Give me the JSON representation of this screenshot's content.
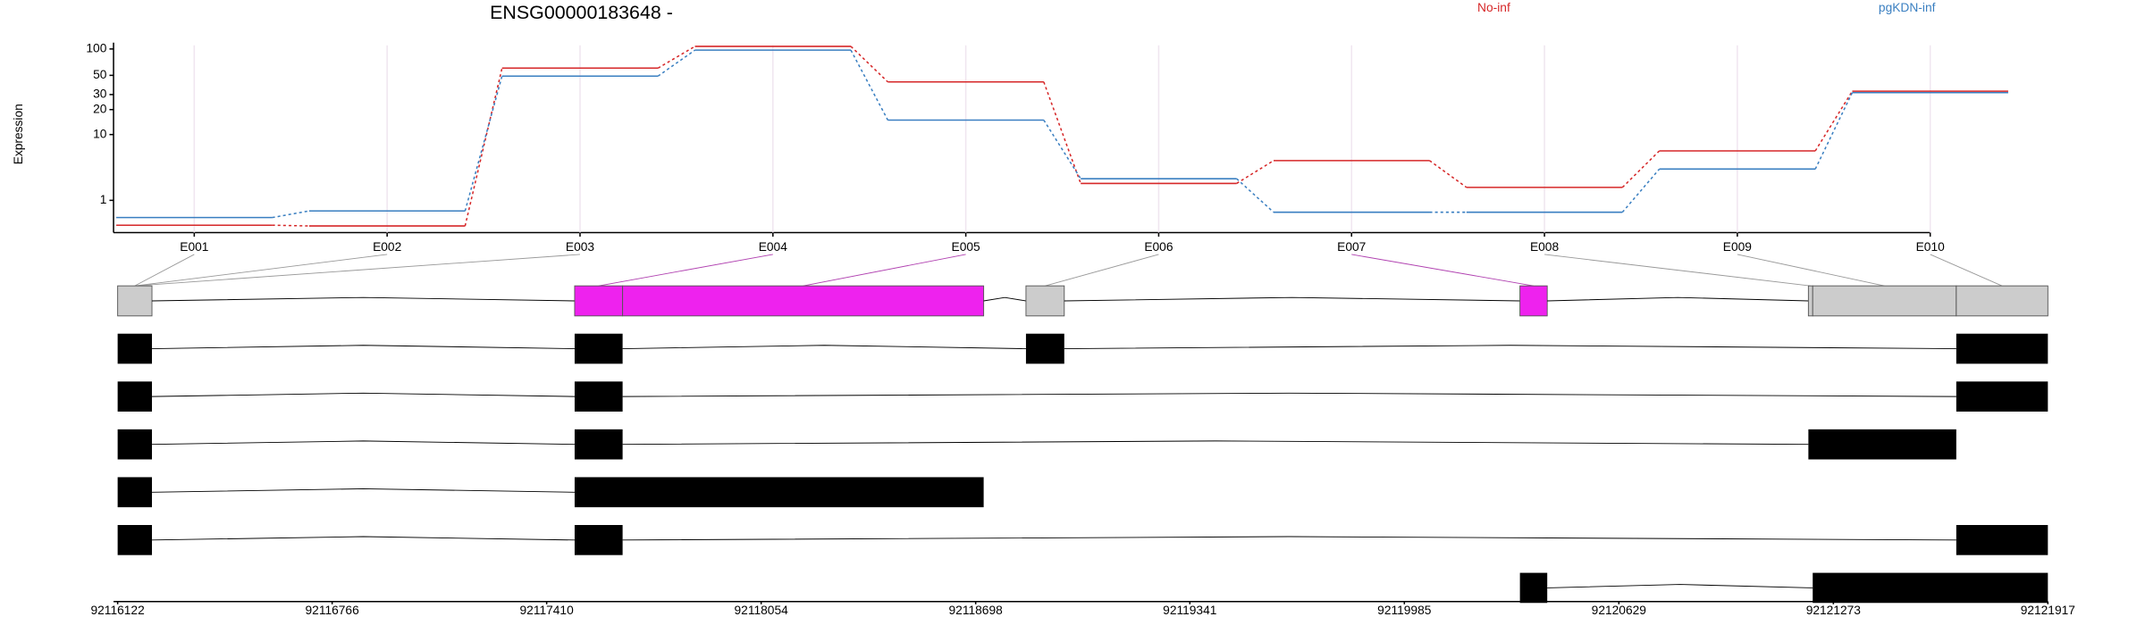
{
  "chart_data": {
    "type": "line",
    "title": "ENSG00000183648 -",
    "y_label": "Expression",
    "y_scale": "log1p",
    "grid": true,
    "categories": [
      "E001",
      "E002",
      "E003",
      "E004",
      "E005",
      "E006",
      "E007",
      "E008",
      "E009",
      "E010"
    ],
    "series": [
      {
        "name": "No-inf",
        "color": "#d62728",
        "values": [
          0.05,
          0.03,
          60.5,
          107,
          42,
          2.1,
          4.6,
          1.8,
          6.2,
          32.8
        ]
      },
      {
        "name": "pgKDN-inf",
        "color": "#3a7fc1",
        "values": [
          0.28,
          0.52,
          49,
          97,
          15,
          2.5,
          0.47,
          0.47,
          3.5,
          31.6
        ]
      }
    ],
    "ylim": [
      0,
      110
    ],
    "yticks": [
      1,
      10,
      20,
      30,
      50,
      100
    ],
    "gene_model": {
      "xlim": [
        92116122,
        92121917
      ],
      "xticks": [
        92116122,
        92116766,
        92117410,
        92118054,
        92118698,
        92119341,
        92119985,
        92120629,
        92121273,
        92121917
      ],
      "transcript_color": "#000000",
      "exons": [
        {
          "start": 92116122,
          "end": 92116225,
          "color": "#cccccc"
        },
        {
          "start": 92117494,
          "end": 92117638,
          "color": "#ee22ee"
        },
        {
          "start": 92117638,
          "end": 92118722,
          "color": "#ee22ee"
        },
        {
          "start": 92118849,
          "end": 92118964,
          "color": "#cccccc"
        },
        {
          "start": 92120332,
          "end": 92120414,
          "color": "#ee22ee"
        },
        {
          "start": 92121198,
          "end": 92121211,
          "color": "#cccccc"
        },
        {
          "start": 92121211,
          "end": 92121642,
          "color": "#cccccc"
        },
        {
          "start": 92121642,
          "end": 92121917,
          "color": "#cccccc"
        }
      ],
      "transcripts": [
        [
          [
            92116122,
            92116225
          ],
          [
            92117494,
            92117638
          ],
          [
            92118849,
            92118964
          ],
          [
            92121642,
            92121917
          ]
        ],
        [
          [
            92116122,
            92116225
          ],
          [
            92117494,
            92117638
          ],
          [
            92121642,
            92121917
          ]
        ],
        [
          [
            92116122,
            92116225
          ],
          [
            92117494,
            92117638
          ],
          [
            92121198,
            92121642
          ]
        ],
        [
          [
            92116122,
            92116225
          ],
          [
            92117494,
            92118722
          ]
        ],
        [
          [
            92116122,
            92116225
          ],
          [
            92117494,
            92117638
          ],
          [
            92121642,
            92121917
          ]
        ],
        [
          [
            92120332,
            92120414
          ],
          [
            92121211,
            92121917
          ]
        ]
      ]
    }
  }
}
